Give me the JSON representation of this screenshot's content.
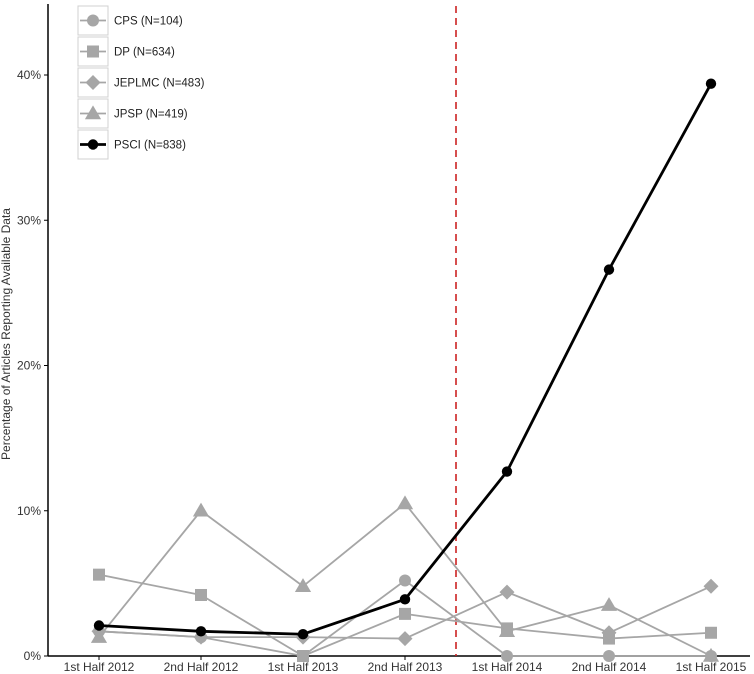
{
  "chart_data": {
    "type": "line",
    "ylabel": "Percentage of Articles Reporting Available Data",
    "categories": [
      "1st Half 2012",
      "2nd Half 2012",
      "1st Half 2013",
      "2nd Half 2013",
      "1st Half 2014",
      "2nd Half 2014",
      "1st Half 2015"
    ],
    "yticks": [
      0,
      10,
      20,
      30,
      40
    ],
    "ytick_labels": [
      "0%",
      "10%",
      "20%",
      "30%",
      "40%"
    ],
    "ylim": [
      0,
      45
    ],
    "grid": false,
    "legend_position": "top-left",
    "reference_line": {
      "after_category_index": 3.5,
      "style": "dashed",
      "color": "#cc2222"
    },
    "series": [
      {
        "name": "CPS (N=104)",
        "marker": "circle",
        "color": "#a6a6a6",
        "values": [
          1.7,
          1.3,
          0.0,
          5.2,
          0.0,
          0.0,
          0.0
        ]
      },
      {
        "name": "DP (N=634)",
        "marker": "square",
        "color": "#a6a6a6",
        "values": [
          5.6,
          4.2,
          0.0,
          2.9,
          1.9,
          1.2,
          1.6
        ]
      },
      {
        "name": "JEPLMC (N=483)",
        "marker": "diamond",
        "color": "#a6a6a6",
        "values": [
          1.7,
          1.3,
          1.3,
          1.2,
          4.4,
          1.6,
          4.8
        ]
      },
      {
        "name": "JPSP (N=419)",
        "marker": "triangle",
        "color": "#a6a6a6",
        "values": [
          1.3,
          10.0,
          4.8,
          10.5,
          1.7,
          3.5,
          0.0
        ]
      },
      {
        "name": "PSCI (N=838)",
        "marker": "circle",
        "color": "#000000",
        "values": [
          2.1,
          1.7,
          1.5,
          3.9,
          12.7,
          26.6,
          39.4
        ]
      }
    ]
  }
}
